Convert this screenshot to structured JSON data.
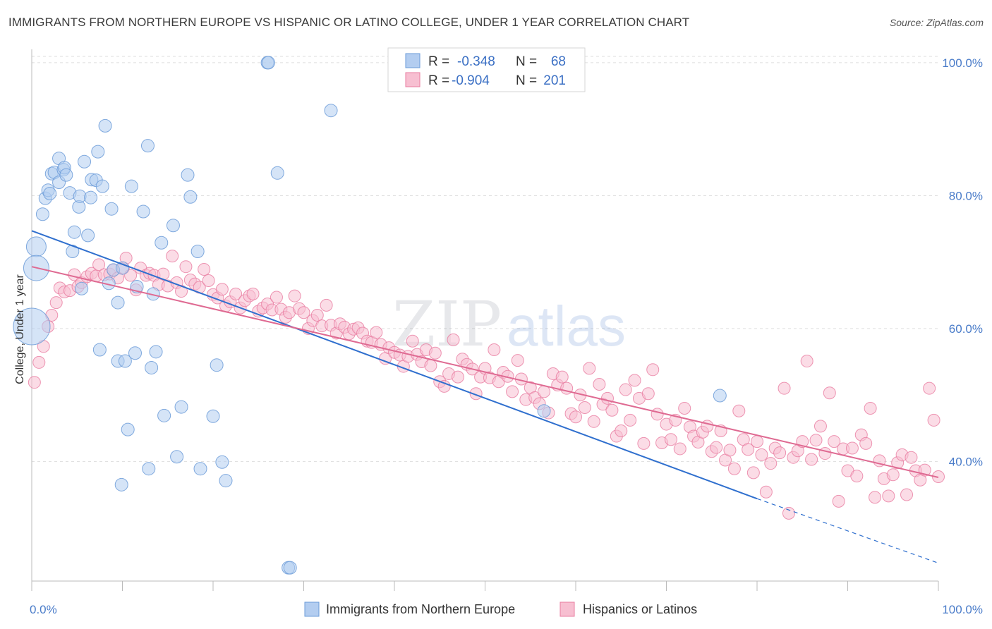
{
  "title": "IMMIGRANTS FROM NORTHERN EUROPE VS HISPANIC OR LATINO COLLEGE, UNDER 1 YEAR CORRELATION CHART",
  "source": "Source: ZipAtlas.com",
  "watermark": {
    "zip": "ZIP",
    "atlas": "atlas"
  },
  "colors": {
    "blue": "#6b9bd8",
    "blue_fill": "#b3cdf0",
    "blue_line": "#2f6fce",
    "pink": "#e87ca0",
    "pink_fill": "#f7bfd1",
    "pink_line": "#df6a92",
    "tick_text": "#4a7cc9",
    "grid": "#dddddd"
  },
  "legend": {
    "r_label": "R =",
    "n_label": "N =",
    "rows": [
      {
        "r": "-0.348",
        "n": "68"
      },
      {
        "r": "-0.904",
        "n": "201"
      }
    ]
  },
  "chart_data": {
    "type": "scatter",
    "xlabel": "",
    "ylabel": "College, Under 1 year",
    "xlim": [
      0,
      100
    ],
    "ylim": [
      22,
      102
    ],
    "x_tick_labels": [
      "0.0%",
      "100.0%"
    ],
    "y_ticks": [
      40,
      60,
      80,
      100
    ],
    "y_tick_labels": [
      "40.0%",
      "60.0%",
      "80.0%",
      "100.0%"
    ],
    "grid": true,
    "series": [
      {
        "name": "Immigrants from Northern Europe",
        "color": "blue",
        "trend": {
          "x0": 0,
          "y0": 74.7,
          "x1": 80,
          "y1": 34.4,
          "dash_x1": 100,
          "dash_y1": 24.7
        },
        "points": [
          [
            0.0,
            60.3,
            26
          ],
          [
            0.5,
            72.3,
            14
          ],
          [
            0.5,
            69.1,
            18
          ],
          [
            1.2,
            77.2,
            9
          ],
          [
            1.5,
            79.6,
            9
          ],
          [
            1.8,
            80.8,
            9
          ],
          [
            2.0,
            80.3,
            9
          ],
          [
            2.2,
            83.3,
            9
          ],
          [
            2.5,
            83.5,
            9
          ],
          [
            3.0,
            85.6,
            9
          ],
          [
            3.0,
            82.0,
            9
          ],
          [
            3.5,
            83.9,
            9
          ],
          [
            3.6,
            84.2,
            9
          ],
          [
            3.8,
            83.1,
            9
          ],
          [
            4.2,
            80.4,
            9
          ],
          [
            4.5,
            71.6,
            9
          ],
          [
            4.7,
            74.5,
            9
          ],
          [
            5.2,
            78.3,
            9
          ],
          [
            5.3,
            79.9,
            9
          ],
          [
            5.5,
            66.0,
            9
          ],
          [
            5.8,
            85.1,
            9
          ],
          [
            6.2,
            74.0,
            9
          ],
          [
            6.5,
            79.7,
            9
          ],
          [
            6.6,
            82.4,
            9
          ],
          [
            7.1,
            82.3,
            9
          ],
          [
            7.3,
            86.6,
            9
          ],
          [
            7.5,
            56.8,
            9
          ],
          [
            7.8,
            81.4,
            9
          ],
          [
            8.1,
            90.5,
            9
          ],
          [
            8.5,
            66.8,
            9
          ],
          [
            8.8,
            78.0,
            9
          ],
          [
            9.0,
            68.8,
            9
          ],
          [
            9.5,
            63.9,
            9
          ],
          [
            9.5,
            55.1,
            9
          ],
          [
            9.9,
            36.5,
            9
          ],
          [
            10.0,
            69.1,
            9
          ],
          [
            10.3,
            55.1,
            9
          ],
          [
            10.6,
            44.8,
            9
          ],
          [
            11.0,
            81.4,
            9
          ],
          [
            11.4,
            56.3,
            9
          ],
          [
            11.6,
            66.3,
            9
          ],
          [
            12.3,
            77.6,
            9
          ],
          [
            12.8,
            87.5,
            9
          ],
          [
            12.9,
            38.9,
            9
          ],
          [
            13.2,
            54.1,
            9
          ],
          [
            13.4,
            65.2,
            9
          ],
          [
            13.7,
            56.5,
            9
          ],
          [
            14.3,
            72.9,
            9
          ],
          [
            14.6,
            46.9,
            9
          ],
          [
            15.6,
            75.5,
            9
          ],
          [
            16.0,
            40.7,
            9
          ],
          [
            16.5,
            48.2,
            9
          ],
          [
            17.2,
            83.1,
            9
          ],
          [
            17.5,
            79.8,
            9
          ],
          [
            18.3,
            71.6,
            9
          ],
          [
            18.6,
            38.9,
            9
          ],
          [
            20.0,
            46.8,
            9
          ],
          [
            20.4,
            54.5,
            9
          ],
          [
            21.0,
            39.9,
            9
          ],
          [
            21.4,
            37.1,
            9
          ],
          [
            26.0,
            100.0,
            9
          ],
          [
            26.1,
            100.0,
            9
          ],
          [
            27.1,
            83.4,
            9
          ],
          [
            28.3,
            24.0,
            9
          ],
          [
            28.5,
            24.0,
            9
          ],
          [
            33.0,
            92.8,
            9
          ],
          [
            56.5,
            47.6,
            9
          ],
          [
            75.9,
            49.9,
            9
          ]
        ]
      },
      {
        "name": "Hispanics or Latinos",
        "color": "pink",
        "trend": {
          "x0": 0,
          "y0": 69.3,
          "x1": 100,
          "y1": 37.6
        },
        "points": [
          [
            0.3,
            51.9
          ],
          [
            0.8,
            54.9
          ],
          [
            1.3,
            57.3
          ],
          [
            1.8,
            60.3
          ],
          [
            2.2,
            62.0
          ],
          [
            2.7,
            63.9
          ],
          [
            3.1,
            66.1
          ],
          [
            3.6,
            65.5
          ],
          [
            4.2,
            65.7
          ],
          [
            4.7,
            68.1
          ],
          [
            5.1,
            66.3
          ],
          [
            5.5,
            66.9
          ],
          [
            6.1,
            67.8
          ],
          [
            6.6,
            68.3
          ],
          [
            7.1,
            67.9
          ],
          [
            7.4,
            69.6
          ],
          [
            8.0,
            68.1
          ],
          [
            8.6,
            68.2
          ],
          [
            9.0,
            68.8
          ],
          [
            9.5,
            67.6
          ],
          [
            10.1,
            69.1
          ],
          [
            10.4,
            70.6
          ],
          [
            10.9,
            68.0
          ],
          [
            11.5,
            65.8
          ],
          [
            12.0,
            69.1
          ],
          [
            12.6,
            68.0
          ],
          [
            13.0,
            68.3
          ],
          [
            13.5,
            68.0
          ],
          [
            14.0,
            66.6
          ],
          [
            14.5,
            68.2
          ],
          [
            15.0,
            66.4
          ],
          [
            15.5,
            70.9
          ],
          [
            16.0,
            66.9
          ],
          [
            16.5,
            65.6
          ],
          [
            17.0,
            69.3
          ],
          [
            17.5,
            67.3
          ],
          [
            18.0,
            66.7
          ],
          [
            18.5,
            66.2
          ],
          [
            19.0,
            68.9
          ],
          [
            19.5,
            67.2
          ],
          [
            20.0,
            65.1
          ],
          [
            20.5,
            64.6
          ],
          [
            21.0,
            65.9
          ],
          [
            21.4,
            63.4
          ],
          [
            21.9,
            64.0
          ],
          [
            22.5,
            65.2
          ],
          [
            23.0,
            63.1
          ],
          [
            23.5,
            64.2
          ],
          [
            24.0,
            64.9
          ],
          [
            24.4,
            65.2
          ],
          [
            25.0,
            62.6
          ],
          [
            25.5,
            63.1
          ],
          [
            26.0,
            63.7
          ],
          [
            26.5,
            62.8
          ],
          [
            27.0,
            64.7
          ],
          [
            27.5,
            62.9
          ],
          [
            28.0,
            61.7
          ],
          [
            28.4,
            62.4
          ],
          [
            29.0,
            64.9
          ],
          [
            29.5,
            63.0
          ],
          [
            30.0,
            62.4
          ],
          [
            30.5,
            60.0
          ],
          [
            31.0,
            61.2
          ],
          [
            31.5,
            62.0
          ],
          [
            32.0,
            60.4
          ],
          [
            32.5,
            63.5
          ],
          [
            33.0,
            60.5
          ],
          [
            33.6,
            59.3
          ],
          [
            34.0,
            60.7
          ],
          [
            34.5,
            60.2
          ],
          [
            35.0,
            59.2
          ],
          [
            35.5,
            59.9
          ],
          [
            36.0,
            60.1
          ],
          [
            36.5,
            59.3
          ],
          [
            37.0,
            58.1
          ],
          [
            37.5,
            57.9
          ],
          [
            38.0,
            59.4
          ],
          [
            38.5,
            57.6
          ],
          [
            39.0,
            55.5
          ],
          [
            39.4,
            57.1
          ],
          [
            40.0,
            56.4
          ],
          [
            40.6,
            56.0
          ],
          [
            41.0,
            54.3
          ],
          [
            41.5,
            55.8
          ],
          [
            42.0,
            58.1
          ],
          [
            42.5,
            56.1
          ],
          [
            43.0,
            55.0
          ],
          [
            43.5,
            56.8
          ],
          [
            44.0,
            54.4
          ],
          [
            44.5,
            56.3
          ],
          [
            45.0,
            52.0
          ],
          [
            45.5,
            51.3
          ],
          [
            46.0,
            53.2
          ],
          [
            46.5,
            58.3
          ],
          [
            47.0,
            52.7
          ],
          [
            47.5,
            55.4
          ],
          [
            48.0,
            54.6
          ],
          [
            48.6,
            53.9
          ],
          [
            49.0,
            50.2
          ],
          [
            49.5,
            52.7
          ],
          [
            50.0,
            54.0
          ],
          [
            50.5,
            52.6
          ],
          [
            51.0,
            56.8
          ],
          [
            51.5,
            52.0
          ],
          [
            52.0,
            53.4
          ],
          [
            52.5,
            52.8
          ],
          [
            53.0,
            50.5
          ],
          [
            53.6,
            55.2
          ],
          [
            54.0,
            52.4
          ],
          [
            54.5,
            49.3
          ],
          [
            55.0,
            51.1
          ],
          [
            55.5,
            49.6
          ],
          [
            56.0,
            48.7
          ],
          [
            56.5,
            50.5
          ],
          [
            57.0,
            47.3
          ],
          [
            57.5,
            53.2
          ],
          [
            58.0,
            51.5
          ],
          [
            58.5,
            52.7
          ],
          [
            59.0,
            51.0
          ],
          [
            59.5,
            47.2
          ],
          [
            60.0,
            46.7
          ],
          [
            60.5,
            50.0
          ],
          [
            61.0,
            48.1
          ],
          [
            61.5,
            54.0
          ],
          [
            62.0,
            46.0
          ],
          [
            62.6,
            51.6
          ],
          [
            63.0,
            48.6
          ],
          [
            63.5,
            49.5
          ],
          [
            64.0,
            47.7
          ],
          [
            64.5,
            43.8
          ],
          [
            65.0,
            44.6
          ],
          [
            65.5,
            50.8
          ],
          [
            66.0,
            46.2
          ],
          [
            66.5,
            52.2
          ],
          [
            67.0,
            49.5
          ],
          [
            67.5,
            42.7
          ],
          [
            68.0,
            50.2
          ],
          [
            68.5,
            53.8
          ],
          [
            69.0,
            47.1
          ],
          [
            69.5,
            42.8
          ],
          [
            70.0,
            45.6
          ],
          [
            70.5,
            43.3
          ],
          [
            71.0,
            46.2
          ],
          [
            71.5,
            41.9
          ],
          [
            72.0,
            48.0
          ],
          [
            72.6,
            45.2
          ],
          [
            73.0,
            43.8
          ],
          [
            73.5,
            42.9
          ],
          [
            74.0,
            44.4
          ],
          [
            74.5,
            45.3
          ],
          [
            75.0,
            41.5
          ],
          [
            75.5,
            42.1
          ],
          [
            76.0,
            44.6
          ],
          [
            76.5,
            40.2
          ],
          [
            77.0,
            41.7
          ],
          [
            77.5,
            38.9
          ],
          [
            78.0,
            47.6
          ],
          [
            78.5,
            43.3
          ],
          [
            79.0,
            41.8
          ],
          [
            79.6,
            38.3
          ],
          [
            80.0,
            43.0
          ],
          [
            80.5,
            41.0
          ],
          [
            81.0,
            35.4
          ],
          [
            81.5,
            39.7
          ],
          [
            82.0,
            42.0
          ],
          [
            82.5,
            41.3
          ],
          [
            83.0,
            51.0
          ],
          [
            83.5,
            32.2
          ],
          [
            84.0,
            40.6
          ],
          [
            84.5,
            41.6
          ],
          [
            85.0,
            43.0
          ],
          [
            85.5,
            55.1
          ],
          [
            86.0,
            40.3
          ],
          [
            86.5,
            43.2
          ],
          [
            87.0,
            45.3
          ],
          [
            87.5,
            41.2
          ],
          [
            88.0,
            50.3
          ],
          [
            88.5,
            43.0
          ],
          [
            89.0,
            34.0
          ],
          [
            89.5,
            41.9
          ],
          [
            90.0,
            38.6
          ],
          [
            90.5,
            42.0
          ],
          [
            91.0,
            37.8
          ],
          [
            91.5,
            44.0
          ],
          [
            92.0,
            42.7
          ],
          [
            92.5,
            48.0
          ],
          [
            93.0,
            34.6
          ],
          [
            93.5,
            40.1
          ],
          [
            94.0,
            37.4
          ],
          [
            94.5,
            34.8
          ],
          [
            95.0,
            38.0
          ],
          [
            95.5,
            39.8
          ],
          [
            96.0,
            41.0
          ],
          [
            96.5,
            35.0
          ],
          [
            97.0,
            40.6
          ],
          [
            97.5,
            38.6
          ],
          [
            98.0,
            37.2
          ],
          [
            98.5,
            38.7
          ],
          [
            99.0,
            51.0
          ],
          [
            100.0,
            37.7
          ],
          [
            99.5,
            46.2
          ]
        ]
      }
    ]
  },
  "bottom_legend": {
    "items": [
      {
        "label": "Immigrants from Northern Europe",
        "color": "blue"
      },
      {
        "label": "Hispanics or Latinos",
        "color": "pink"
      }
    ]
  }
}
